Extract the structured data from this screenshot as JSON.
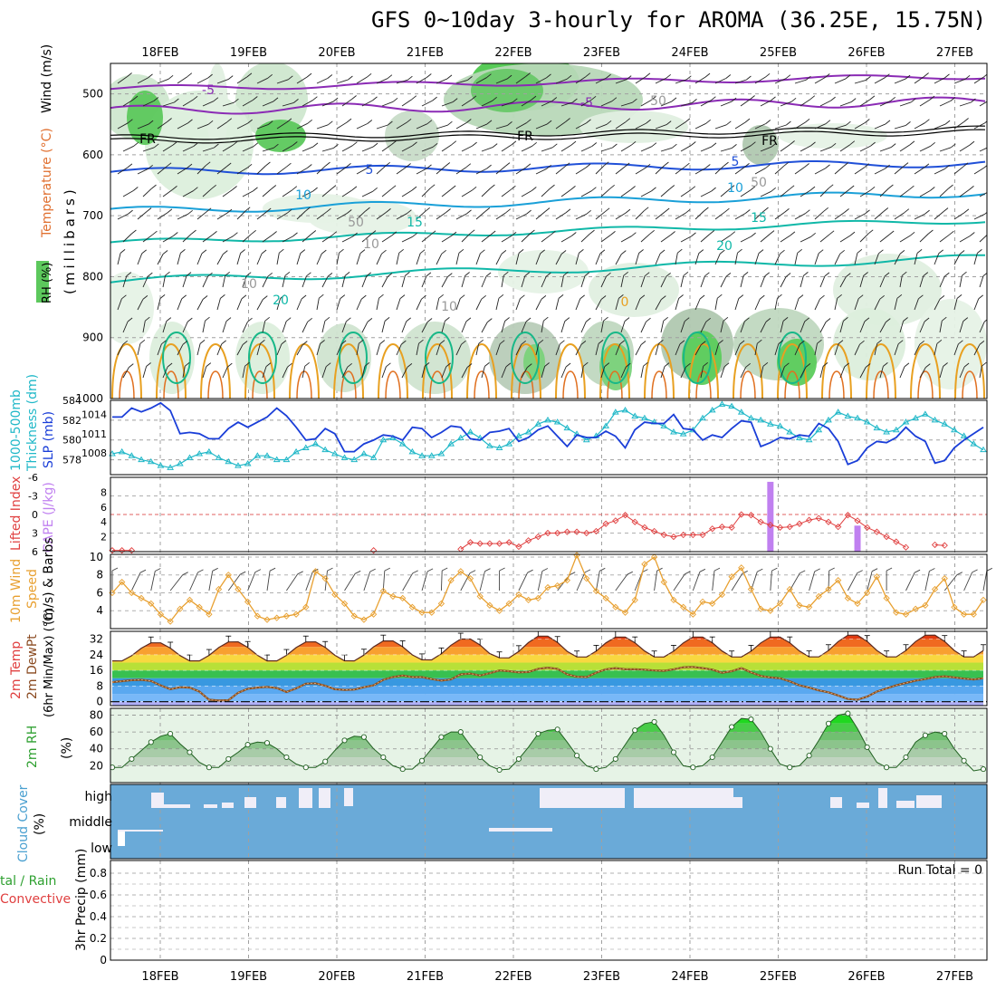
{
  "title": "GFS 0~10day 3-hourly for AROMA (36.25E, 15.75N)",
  "dates": [
    "18FEB",
    "19FEB",
    "20FEB",
    "21FEB",
    "22FEB",
    "23FEB",
    "24FEB",
    "25FEB",
    "26FEB",
    "27FEB"
  ],
  "colors": {
    "rh_green": "#2ec830",
    "temp_purple": "#8b2bb5",
    "temp_blue": "#2050d8",
    "temp_cyan": "#1aa0d8",
    "temp_teal": "#10b8a8",
    "temp_orange": "#e8a020",
    "slp_blue": "#1a3ed8",
    "thickness_cyan": "#20b8c8",
    "cape_violet": "#c080f0",
    "li_red": "#e04040",
    "wind_orange": "#e8a030",
    "cloud_blue": "#6aaad8"
  },
  "chart_data": [
    {
      "type": "heatmap",
      "name": "upper-air",
      "ylabels": [
        "Wind (m/s)",
        "Temperature (°C)",
        "RH (%)",
        "(millibars)"
      ],
      "yticks": [
        500,
        600,
        700,
        800,
        900,
        1000
      ],
      "ylim": [
        1000,
        450
      ],
      "contour_labels": [
        "-5",
        "-5",
        "FR",
        "FR",
        "FR",
        "5",
        "5",
        "10",
        "10",
        "15",
        "15",
        "20",
        "20",
        "0",
        "50",
        "50",
        "50",
        "10",
        "10",
        "10"
      ]
    },
    {
      "type": "line",
      "name": "slp-thickness",
      "ylabel_left": "1000-500mb Thickness (dm)",
      "ylabel_right": "SLP (mb)",
      "yticks_left": [
        584,
        582,
        580,
        578
      ],
      "yticks_right": [
        1014,
        1011,
        1008
      ],
      "ylim_left": [
        576.5,
        584
      ],
      "series": [
        {
          "name": "SLP (mb)",
          "values": [
            1013.6,
            1013.6,
            1015.0,
            1014.4,
            1015.0,
            1015.8,
            1014.6,
            1011.0,
            1011.2,
            1011.0,
            1010.2,
            1010.2,
            1011.8,
            1012.8,
            1012.0,
            1012.8,
            1013.6,
            1015.0,
            1013.8,
            1012.0,
            1010.0,
            1010.2,
            1011.8,
            1011.0,
            1008.2,
            1008.2,
            1009.4,
            1010.0,
            1010.8,
            1010.6,
            1010.0,
            1012.0,
            1011.8,
            1010.4,
            1011.2,
            1012.2,
            1012.0,
            1010.2,
            1010.0,
            1011.2,
            1011.4,
            1011.8,
            1009.8,
            1010.4,
            1011.6,
            1012.2,
            1010.6,
            1009.0,
            1010.8,
            1010.4,
            1010.4,
            1011.4,
            1010.6,
            1008.8,
            1011.6,
            1012.8,
            1012.6,
            1012.6,
            1014.0,
            1011.8,
            1011.6,
            1010.0,
            1010.8,
            1010.4,
            1011.8,
            1013.0,
            1012.8,
            1009.0,
            1009.6,
            1010.4,
            1010.2,
            1010.8,
            1010.6,
            1012.6,
            1011.8,
            1009.8,
            1006.2,
            1006.8,
            1008.8,
            1009.8,
            1009.6,
            1010.4,
            1012.0,
            1010.6,
            1009.8,
            1006.4,
            1006.8,
            1008.8,
            1010.0,
            1011.0,
            1012.0
          ]
        },
        {
          "name": "Thickness (dm)",
          "values": [
            578.6,
            578.8,
            578.4,
            578.0,
            577.8,
            577.4,
            577.2,
            577.6,
            578.2,
            578.6,
            578.8,
            578.2,
            577.8,
            577.4,
            577.6,
            578.4,
            578.4,
            578.0,
            578.0,
            578.8,
            579.2,
            579.6,
            579.0,
            578.6,
            578.2,
            578.0,
            578.6,
            578.2,
            580.0,
            580.2,
            579.6,
            578.8,
            578.4,
            578.4,
            578.6,
            579.6,
            580.2,
            580.8,
            580.2,
            579.4,
            579.2,
            579.6,
            580.4,
            580.8,
            581.6,
            582.0,
            581.8,
            581.2,
            580.6,
            580.0,
            580.4,
            581.4,
            582.8,
            583.0,
            582.4,
            582.2,
            581.8,
            581.4,
            580.8,
            580.6,
            581.0,
            582.2,
            583.0,
            583.6,
            583.4,
            582.8,
            582.2,
            582.0,
            581.6,
            581.4,
            580.8,
            580.2,
            580.0,
            581.0,
            582.0,
            582.8,
            582.4,
            582.2,
            581.8,
            581.2,
            580.8,
            581.0,
            581.8,
            582.2,
            582.6,
            582.0,
            581.6,
            581.0,
            580.4,
            579.6,
            579.0
          ]
        }
      ]
    },
    {
      "type": "bar",
      "name": "cape-lifted-index",
      "ylabel_left": "Lifted Index",
      "ylabel_right": "CAPE (J/kg)",
      "yticks_left": [
        -6,
        -3,
        0,
        3,
        6
      ],
      "yticks_right": [
        8,
        6,
        4,
        2
      ],
      "ylim_left": [
        -6,
        6
      ],
      "ylim_right": [
        0,
        10
      ],
      "cape_values": [
        0,
        0,
        0,
        0,
        0,
        0,
        0,
        0,
        0,
        0,
        0,
        0,
        0,
        0,
        0,
        0,
        0,
        0,
        0,
        0,
        0,
        0,
        0,
        0,
        0,
        0,
        0,
        0,
        0,
        0,
        0,
        0,
        0,
        0,
        0,
        0,
        0,
        0,
        0,
        0,
        0,
        0,
        0,
        0,
        0,
        0,
        0,
        0,
        0,
        0,
        0,
        0,
        0,
        0,
        0,
        0,
        0,
        0,
        0,
        0,
        0,
        0,
        0,
        0,
        0,
        0,
        0,
        0,
        9.4,
        0,
        0,
        0,
        0,
        0,
        0,
        0,
        0,
        3.5,
        0,
        0,
        0,
        0,
        0,
        0,
        0,
        0,
        0,
        0,
        0,
        0,
        0
      ],
      "lifted_index": [
        5.8,
        5.8,
        5.8,
        6.2,
        6.2,
        6.2,
        6.2,
        6.2,
        6.2,
        6.2,
        6.2,
        6.2,
        6.2,
        6.2,
        6.2,
        6.2,
        6.2,
        6.2,
        6.2,
        6.2,
        6.2,
        6.2,
        6.2,
        6.2,
        6.2,
        6.2,
        6.2,
        5.8,
        6.2,
        6.2,
        6.2,
        6.2,
        6.2,
        6.2,
        6.2,
        6.2,
        5.6,
        4.5,
        4.7,
        4.7,
        4.7,
        4.5,
        5.2,
        4.2,
        3.6,
        3.0,
        3.0,
        2.8,
        2.8,
        3.0,
        2.7,
        1.5,
        1.0,
        0.1,
        1.2,
        2.1,
        2.7,
        3.3,
        3.6,
        3.3,
        3.3,
        3.3,
        2.3,
        2.0,
        2.1,
        0.0,
        0.1,
        1.2,
        1.7,
        2.1,
        2.0,
        1.5,
        0.9,
        0.6,
        1.2,
        2.0,
        0.1,
        1.0,
        2.1,
        2.8,
        3.6,
        4.4,
        5.3,
        6.2,
        6.2,
        4.9,
        5.0,
        6.2,
        6.2,
        6.2,
        6.2
      ]
    },
    {
      "type": "line",
      "name": "wind-10m",
      "ylabel": "10m Wind Speed (m/s) & Barbs",
      "yticks": [
        10,
        8,
        6,
        4
      ],
      "ylim": [
        2,
        10.3
      ],
      "values": [
        6.0,
        7.2,
        6.0,
        5.4,
        4.8,
        3.6,
        2.8,
        4.2,
        5.2,
        4.4,
        3.6,
        6.4,
        8.0,
        6.4,
        5.0,
        3.4,
        3.0,
        3.2,
        3.4,
        3.6,
        4.4,
        8.4,
        7.6,
        5.8,
        4.8,
        3.4,
        3.0,
        3.6,
        6.2,
        5.6,
        5.4,
        4.4,
        3.8,
        3.8,
        4.8,
        7.4,
        8.4,
        7.6,
        5.6,
        4.6,
        4.0,
        4.8,
        5.8,
        5.2,
        5.4,
        6.6,
        6.8,
        7.4,
        10.2,
        7.6,
        6.2,
        5.4,
        4.4,
        3.8,
        5.2,
        9.2,
        10.0,
        7.2,
        5.2,
        4.4,
        3.6,
        5.0,
        4.8,
        5.8,
        7.8,
        8.8,
        6.4,
        4.2,
        4.0,
        4.8,
        6.4,
        4.6,
        4.4,
        5.6,
        6.4,
        7.4,
        5.4,
        4.8,
        6.0,
        7.8,
        5.4,
        3.8,
        3.6,
        4.2,
        4.6,
        6.4,
        7.6,
        4.4,
        3.6,
        3.6,
        5.2
      ]
    },
    {
      "type": "area",
      "name": "temp-2m",
      "ylabel": "2m Temp 2m DewPt (6hr Min/Max) (°C)",
      "yticks": [
        32,
        24,
        16,
        8,
        0
      ],
      "ylim": [
        -2,
        36
      ],
      "days": 10,
      "daily_min": [
        20.5,
        20.5,
        20.5,
        20.5,
        21.0,
        22.0,
        22.5,
        22.5,
        22.5,
        22.5
      ],
      "daily_max": [
        30.5,
        31.0,
        31.0,
        31.5,
        32.5,
        34.0,
        33.5,
        33.5,
        33.5,
        34.5
      ],
      "dewpoint": [
        10.0,
        10.5,
        11.0,
        11.2,
        10.6,
        8.4,
        6.4,
        7.4,
        7.2,
        5.2,
        1.0,
        0.6,
        0.8,
        4.6,
        6.6,
        7.2,
        7.6,
        7.0,
        5.0,
        6.8,
        9.2,
        9.4,
        8.2,
        6.4,
        6.0,
        6.2,
        7.4,
        8.4,
        11.2,
        12.6,
        13.4,
        12.6,
        12.6,
        11.6,
        10.8,
        11.4,
        14.0,
        14.4,
        13.4,
        14.6,
        16.0,
        15.6,
        15.0,
        15.2,
        16.8,
        17.4,
        16.8,
        14.0,
        12.8,
        12.6,
        14.8,
        16.6,
        17.2,
        16.6,
        16.6,
        16.4,
        16.0,
        15.8,
        16.6,
        17.6,
        17.8,
        17.2,
        16.4,
        14.8,
        15.6,
        17.2,
        15.0,
        13.2,
        12.4,
        12.0,
        10.4,
        8.4,
        7.2,
        5.8,
        4.8,
        3.2,
        1.4,
        1.0,
        2.6,
        5.2,
        6.8,
        8.4,
        9.6,
        10.8,
        11.6,
        12.6,
        13.0,
        12.4,
        11.8,
        11.4,
        12.0
      ]
    },
    {
      "type": "area",
      "name": "rh-2m",
      "ylabel": "2m RH (%)",
      "yticks": [
        80,
        60,
        40,
        20
      ],
      "ylim": [
        0,
        88
      ],
      "values": [
        18,
        18,
        28,
        38,
        48,
        55,
        58,
        46,
        36,
        24,
        18,
        18,
        28,
        36,
        45,
        48,
        47,
        40,
        30,
        22,
        18,
        18,
        25,
        38,
        50,
        55,
        54,
        40,
        30,
        20,
        16,
        16,
        26,
        40,
        54,
        60,
        60,
        44,
        30,
        20,
        15,
        16,
        28,
        42,
        58,
        62,
        63,
        48,
        32,
        20,
        16,
        18,
        28,
        45,
        62,
        70,
        72,
        56,
        36,
        20,
        18,
        20,
        30,
        48,
        66,
        76,
        75,
        60,
        40,
        22,
        18,
        20,
        32,
        50,
        70,
        80,
        82,
        64,
        42,
        24,
        18,
        18,
        30,
        48,
        56,
        60,
        58,
        40,
        26,
        14,
        16
      ]
    },
    {
      "type": "heatmap",
      "name": "cloud-cover",
      "ylabel": "Cloud Cover (%)",
      "levels": [
        "high",
        "middle",
        "low"
      ]
    },
    {
      "type": "bar",
      "name": "precip",
      "ylabel": "3hr Precip (mm)",
      "ylabel_side": "Total / Rain Convective",
      "yticks": [
        0.8,
        0.6,
        0.4,
        0.2,
        0
      ],
      "yticks_text": [
        "0.8",
        "0.6",
        "0.4",
        "0.2",
        "0"
      ],
      "ylim": [
        0,
        0.9
      ],
      "run_total": "Run Total = 0",
      "values": [
        0,
        0,
        0,
        0,
        0,
        0,
        0,
        0,
        0,
        0,
        0,
        0,
        0,
        0,
        0,
        0,
        0,
        0,
        0,
        0,
        0,
        0,
        0,
        0,
        0,
        0,
        0,
        0,
        0,
        0,
        0,
        0,
        0,
        0,
        0,
        0,
        0,
        0,
        0,
        0,
        0,
        0,
        0,
        0,
        0,
        0,
        0,
        0,
        0,
        0,
        0,
        0,
        0,
        0,
        0,
        0,
        0,
        0,
        0,
        0,
        0,
        0,
        0,
        0,
        0,
        0,
        0,
        0,
        0,
        0,
        0,
        0,
        0,
        0,
        0,
        0,
        0,
        0,
        0,
        0,
        0,
        0,
        0,
        0,
        0,
        0,
        0,
        0,
        0,
        0,
        0
      ]
    }
  ],
  "text": {
    "p1_lbl_wind": "Wind (m/s)",
    "p1_lbl_temp": "Temperature (°C)",
    "p1_lbl_rh": "RH (%)",
    "p1_lbl_mb": "(millibars)",
    "p2_lbl_thick": "1000-500mb",
    "p2_lbl_thick2": "Thickness (dm)",
    "p2_lbl_slp": "SLP (mb)",
    "p3_lbl_li": "Lifted Index",
    "p3_lbl_cape": "CAPE (J/kg)",
    "p4_lbl1": "10m Wind",
    "p4_lbl2": "Speed",
    "p4_lbl3": "(m/s) & Barbs",
    "p5_lbl1": "2m Temp",
    "p5_lbl2": "2m DewPt",
    "p5_lbl3": "(6hr Min/Max) (°C)",
    "p6_lbl1": "2m RH",
    "p6_lbl2": "(%)",
    "p7_lbl1": "Cloud Cover",
    "p7_lbl2": "(%)",
    "p8_lbl1": "tal / Rain",
    "p8_lbl2": "Convective",
    "p8_lbl3": "3hr Precip (mm)"
  }
}
